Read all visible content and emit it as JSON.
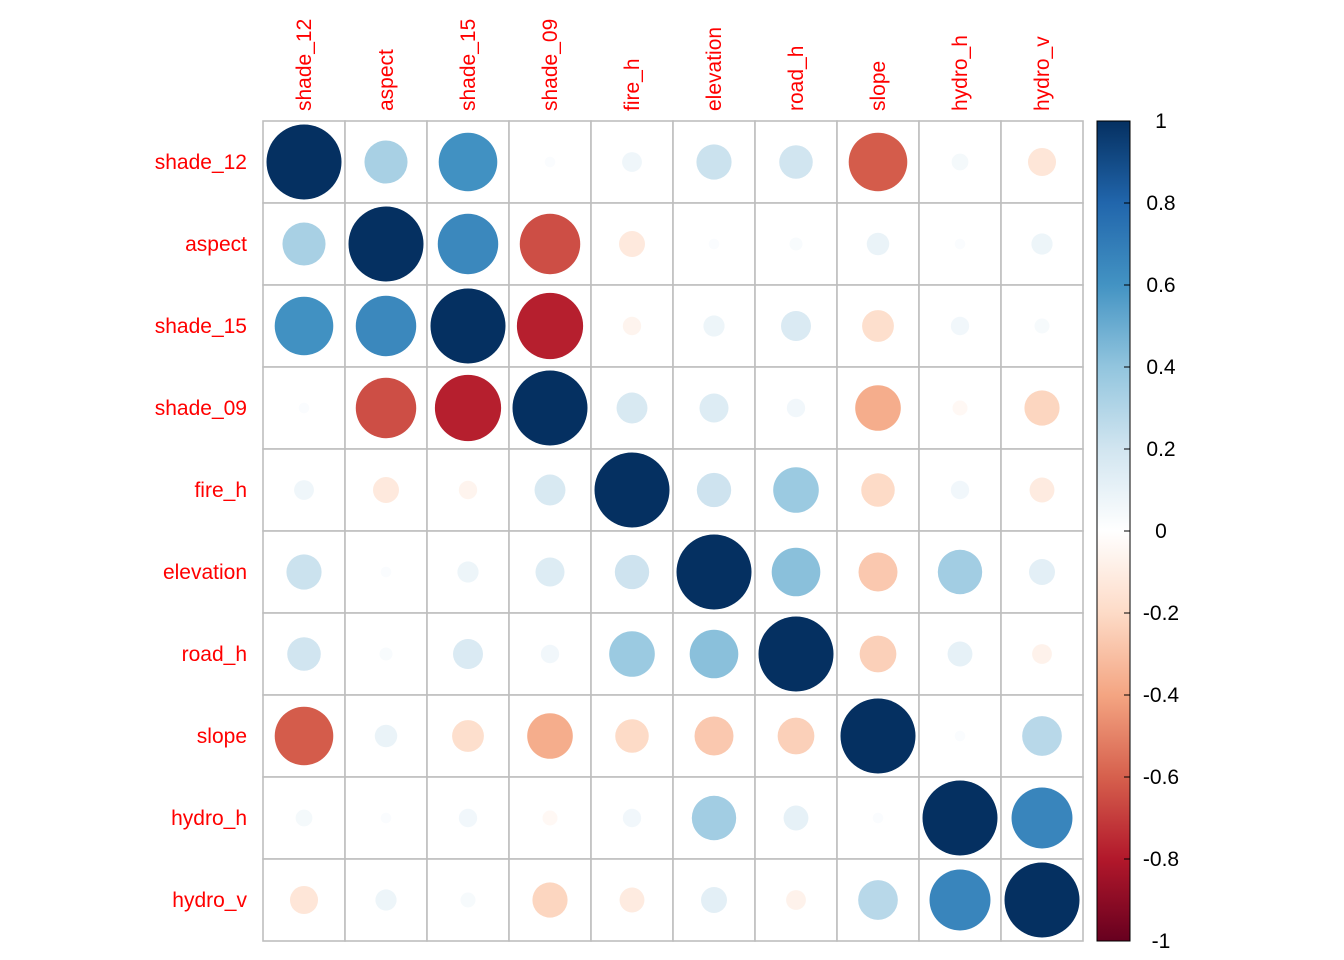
{
  "chart_data": {
    "type": "heatmap",
    "variables": [
      "shade_12",
      "aspect",
      "shade_15",
      "shade_09",
      "fire_h",
      "elevation",
      "road_h",
      "slope",
      "hydro_h",
      "hydro_v"
    ],
    "matrix": [
      [
        1.0,
        0.33,
        0.61,
        0.02,
        0.07,
        0.22,
        0.2,
        -0.61,
        0.05,
        -0.14
      ],
      [
        0.33,
        1.0,
        0.65,
        -0.65,
        -0.12,
        0.02,
        0.03,
        0.09,
        0.02,
        0.08
      ],
      [
        0.61,
        0.65,
        1.0,
        -0.78,
        -0.06,
        0.08,
        0.16,
        -0.18,
        0.06,
        0.04
      ],
      [
        0.02,
        -0.65,
        -0.78,
        1.0,
        0.17,
        0.15,
        0.06,
        -0.37,
        -0.04,
        -0.22
      ],
      [
        0.07,
        -0.12,
        -0.06,
        0.17,
        1.0,
        0.21,
        0.37,
        -0.2,
        0.06,
        -0.11
      ],
      [
        0.22,
        0.02,
        0.08,
        0.15,
        0.21,
        1.0,
        0.42,
        -0.27,
        0.35,
        0.12
      ],
      [
        0.2,
        0.03,
        0.16,
        0.06,
        0.37,
        0.42,
        1.0,
        -0.24,
        0.11,
        -0.07
      ],
      [
        -0.61,
        0.09,
        -0.18,
        -0.37,
        -0.2,
        -0.27,
        -0.24,
        1.0,
        0.02,
        0.28
      ],
      [
        0.05,
        0.02,
        0.06,
        -0.04,
        0.06,
        0.35,
        0.11,
        0.02,
        1.0,
        0.66
      ],
      [
        -0.14,
        0.08,
        0.04,
        -0.22,
        -0.11,
        0.12,
        -0.07,
        0.28,
        0.66,
        1.0
      ]
    ],
    "colorbar": {
      "range": [
        -1,
        1
      ],
      "ticks": [
        "1",
        "0.8",
        "0.6",
        "0.4",
        "0.2",
        "0",
        "-0.2",
        "-0.4",
        "-0.6",
        "-0.8",
        "-1"
      ],
      "palette": [
        "#67001F",
        "#B2182B",
        "#D6604D",
        "#F4A582",
        "#FDDBC7",
        "#FFFFFF",
        "#D1E5F0",
        "#92C5DE",
        "#4393C3",
        "#2166AC",
        "#053061"
      ]
    },
    "label_color": "#FF0000",
    "grid_color": "#BEBEBE",
    "title": "",
    "xlabel": "",
    "ylabel": ""
  }
}
